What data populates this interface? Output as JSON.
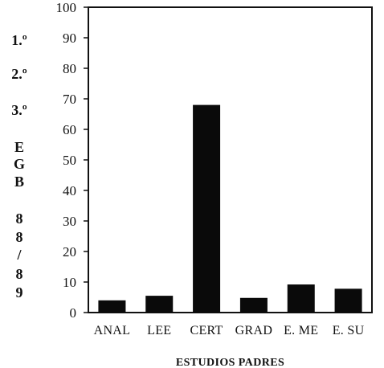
{
  "chart_data": {
    "type": "bar",
    "categories": [
      "ANAL",
      "LEE",
      "CERT",
      "GRAD",
      "E. ME",
      "E. SU"
    ],
    "values": [
      4,
      5.5,
      68,
      4.8,
      9.2,
      7.8
    ],
    "xlabel": "ESTUDIOS PADRES",
    "ylabel_lines": [
      "1.º",
      "2.º",
      "3.º",
      "E",
      "G",
      "B",
      "8",
      "8",
      "/",
      "8",
      "9"
    ],
    "ylim": [
      0,
      100
    ],
    "yticks": [
      0,
      10,
      20,
      30,
      40,
      50,
      60,
      70,
      80,
      90,
      100
    ],
    "grid": false,
    "bar_color": "#0a0a0a"
  }
}
